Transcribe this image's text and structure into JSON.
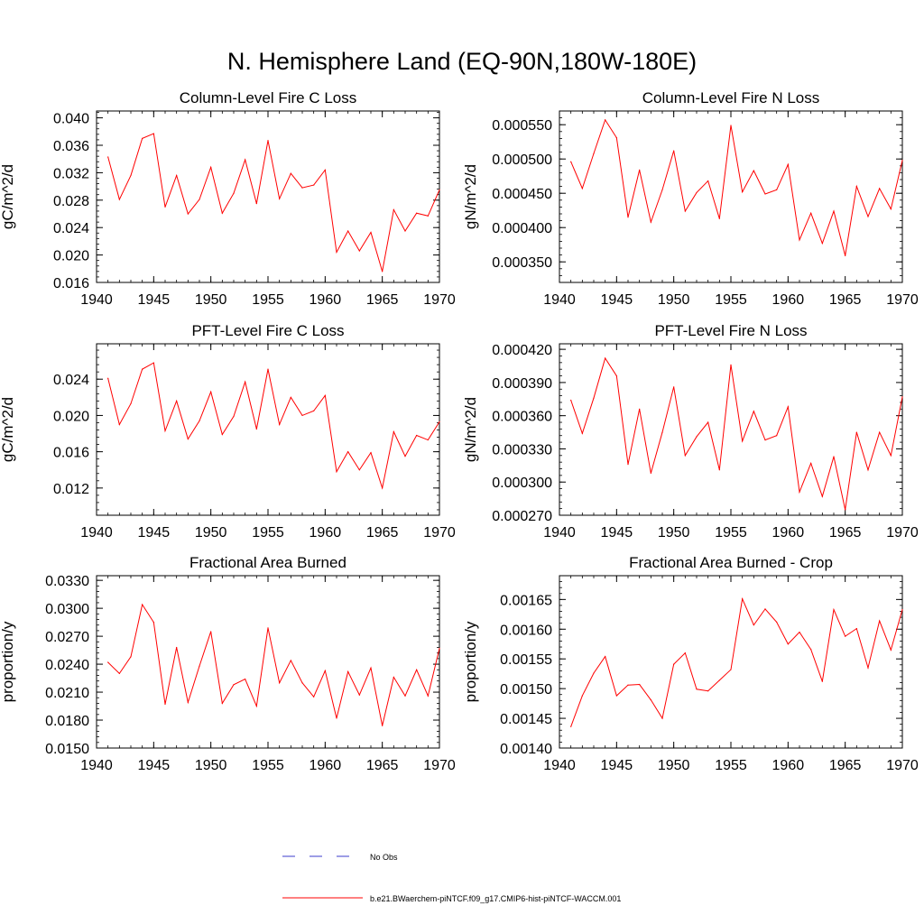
{
  "figure_title": "N. Hemisphere Land (EQ-90N,180W-180E)",
  "legend": {
    "obs_label": "No Obs",
    "obs_color": "#3b3bcc",
    "model_label": "b.e21.BWaerchem-piNTCF.f09_g17.CMIP6-hist-piNTCF-WACCM.001",
    "model_color": "#ff0000"
  },
  "chart_data": [
    {
      "type": "line",
      "title": "Column-Level Fire C Loss",
      "xlabel": "",
      "ylabel": "gC/m^2/d",
      "xlim": [
        1940,
        1970
      ],
      "ylim": [
        0.016,
        0.041
      ],
      "grid": false,
      "x_ticks": [
        1940,
        1945,
        1950,
        1955,
        1960,
        1965,
        1970
      ],
      "x_tick_labels": [
        "1940",
        "1945",
        "1950",
        "1955",
        "1960",
        "1965",
        "1970"
      ],
      "y_ticks": [
        0.016,
        0.02,
        0.024,
        0.028,
        0.032,
        0.036,
        0.04
      ],
      "y_tick_labels": [
        "0.016",
        "0.020",
        "0.024",
        "0.028",
        "0.032",
        "0.036",
        "0.040"
      ],
      "y_minor_step": 0.0008,
      "series": [
        {
          "color": "#ff0000",
          "x": [
            1941,
            1942,
            1943,
            1944,
            1945,
            1946,
            1947,
            1948,
            1949,
            1950,
            1951,
            1952,
            1953,
            1954,
            1955,
            1956,
            1957,
            1958,
            1959,
            1960,
            1961,
            1962,
            1963,
            1964,
            1965,
            1966,
            1967,
            1968,
            1969,
            1970
          ],
          "values": [
            0.0343,
            0.0281,
            0.0316,
            0.037,
            0.0377,
            0.027,
            0.0316,
            0.026,
            0.0281,
            0.0328,
            0.0261,
            0.029,
            0.0339,
            0.0275,
            0.0367,
            0.0282,
            0.0319,
            0.0298,
            0.0302,
            0.0324,
            0.0204,
            0.0235,
            0.0206,
            0.0233,
            0.0176,
            0.0266,
            0.0235,
            0.0261,
            0.0257,
            0.0295
          ]
        }
      ]
    },
    {
      "type": "line",
      "title": "Column-Level Fire N Loss",
      "xlabel": "",
      "ylabel": "gN/m^2/d",
      "xlim": [
        1940,
        1970
      ],
      "ylim": [
        0.00032,
        0.00057
      ],
      "grid": false,
      "x_ticks": [
        1940,
        1945,
        1950,
        1955,
        1960,
        1965,
        1970
      ],
      "x_tick_labels": [
        "1940",
        "1945",
        "1950",
        "1955",
        "1960",
        "1965",
        "1970"
      ],
      "y_ticks": [
        0.00035,
        0.0004,
        0.00045,
        0.0005,
        0.00055
      ],
      "y_tick_labels": [
        "0.000350",
        "0.000400",
        "0.000450",
        "0.000500",
        "0.000550"
      ],
      "y_minor_step": 1e-05,
      "series": [
        {
          "color": "#ff0000",
          "x": [
            1941,
            1942,
            1943,
            1944,
            1945,
            1946,
            1947,
            1948,
            1949,
            1950,
            1951,
            1952,
            1953,
            1954,
            1955,
            1956,
            1957,
            1958,
            1959,
            1960,
            1961,
            1962,
            1963,
            1964,
            1965,
            1966,
            1967,
            1968,
            1969,
            1970
          ],
          "values": [
            0.000496,
            0.000457,
            0.000508,
            0.000557,
            0.000531,
            0.000415,
            0.000484,
            0.000408,
            0.000455,
            0.000512,
            0.000424,
            0.000451,
            0.000468,
            0.000413,
            0.000549,
            0.000452,
            0.000483,
            0.000449,
            0.000455,
            0.000492,
            0.000382,
            0.000421,
            0.000377,
            0.000424,
            0.000359,
            0.00046,
            0.000416,
            0.000457,
            0.000427,
            0.000498
          ]
        }
      ]
    },
    {
      "type": "line",
      "title": "PFT-Level Fire C Loss",
      "xlabel": "",
      "ylabel": "gC/m^2/d",
      "xlim": [
        1940,
        1970
      ],
      "ylim": [
        0.009,
        0.0279
      ],
      "grid": false,
      "x_ticks": [
        1940,
        1945,
        1950,
        1955,
        1960,
        1965,
        1970
      ],
      "x_tick_labels": [
        "1940",
        "1945",
        "1950",
        "1955",
        "1960",
        "1965",
        "1970"
      ],
      "y_ticks": [
        0.012,
        0.016,
        0.02,
        0.024
      ],
      "y_tick_labels": [
        "0.012",
        "0.016",
        "0.020",
        "0.024"
      ],
      "y_minor_step": 0.0008,
      "series": [
        {
          "color": "#ff0000",
          "x": [
            1941,
            1942,
            1943,
            1944,
            1945,
            1946,
            1947,
            1948,
            1949,
            1950,
            1951,
            1952,
            1953,
            1954,
            1955,
            1956,
            1957,
            1958,
            1959,
            1960,
            1961,
            1962,
            1963,
            1964,
            1965,
            1966,
            1967,
            1968,
            1969,
            1970
          ],
          "values": [
            0.0241,
            0.019,
            0.0213,
            0.0251,
            0.0258,
            0.0183,
            0.0216,
            0.0174,
            0.0194,
            0.0226,
            0.0179,
            0.0199,
            0.0237,
            0.0185,
            0.0251,
            0.019,
            0.022,
            0.02,
            0.0205,
            0.0222,
            0.0138,
            0.016,
            0.014,
            0.0159,
            0.012,
            0.0182,
            0.0155,
            0.0178,
            0.0173,
            0.0193
          ]
        }
      ]
    },
    {
      "type": "line",
      "title": "PFT-Level Fire N Loss",
      "xlabel": "",
      "ylabel": "gN/m^2/d",
      "xlim": [
        1940,
        1970
      ],
      "ylim": [
        0.00027,
        0.000425
      ],
      "grid": false,
      "x_ticks": [
        1940,
        1945,
        1950,
        1955,
        1960,
        1965,
        1970
      ],
      "x_tick_labels": [
        "1940",
        "1945",
        "1950",
        "1955",
        "1960",
        "1965",
        "1970"
      ],
      "y_ticks": [
        0.00027,
        0.0003,
        0.00033,
        0.00036,
        0.00039,
        0.00042
      ],
      "y_tick_labels": [
        "0.000270",
        "0.000300",
        "0.000330",
        "0.000360",
        "0.000390",
        "0.000420"
      ],
      "y_minor_step": 6e-06,
      "series": [
        {
          "color": "#ff0000",
          "x": [
            1941,
            1942,
            1943,
            1944,
            1945,
            1946,
            1947,
            1948,
            1949,
            1950,
            1951,
            1952,
            1953,
            1954,
            1955,
            1956,
            1957,
            1958,
            1959,
            1960,
            1961,
            1962,
            1963,
            1964,
            1965,
            1966,
            1967,
            1968,
            1969,
            1970
          ],
          "values": [
            0.000374,
            0.000344,
            0.000376,
            0.000412,
            0.000396,
            0.000316,
            0.000366,
            0.000308,
            0.000345,
            0.000386,
            0.000324,
            0.000341,
            0.000354,
            0.000311,
            0.000406,
            0.000337,
            0.000364,
            0.000338,
            0.000342,
            0.000368,
            0.000291,
            0.000317,
            0.000287,
            0.000323,
            0.000275,
            0.000345,
            0.000311,
            0.000345,
            0.000324,
            0.000377
          ]
        }
      ]
    },
    {
      "type": "line",
      "title": "Fractional Area Burned",
      "xlabel": "",
      "ylabel": "proportion/y",
      "xlim": [
        1940,
        1970
      ],
      "ylim": [
        0.015,
        0.0335
      ],
      "grid": false,
      "x_ticks": [
        1940,
        1945,
        1950,
        1955,
        1960,
        1965,
        1970
      ],
      "x_tick_labels": [
        "1940",
        "1945",
        "1950",
        "1955",
        "1960",
        "1965",
        "1970"
      ],
      "y_ticks": [
        0.015,
        0.018,
        0.021,
        0.024,
        0.027,
        0.03,
        0.033
      ],
      "y_tick_labels": [
        "0.0150",
        "0.0180",
        "0.0210",
        "0.0240",
        "0.0270",
        "0.0300",
        "0.0330"
      ],
      "y_minor_step": 0.0006,
      "series": [
        {
          "color": "#ff0000",
          "x": [
            1941,
            1942,
            1943,
            1944,
            1945,
            1946,
            1947,
            1948,
            1949,
            1950,
            1951,
            1952,
            1953,
            1954,
            1955,
            1956,
            1957,
            1958,
            1959,
            1960,
            1961,
            1962,
            1963,
            1964,
            1965,
            1966,
            1967,
            1968,
            1969,
            1970
          ],
          "values": [
            0.0242,
            0.023,
            0.0248,
            0.0304,
            0.0285,
            0.0197,
            0.0258,
            0.0199,
            0.0238,
            0.0275,
            0.0198,
            0.0218,
            0.0224,
            0.0195,
            0.0279,
            0.022,
            0.0244,
            0.022,
            0.0205,
            0.0233,
            0.0182,
            0.0232,
            0.0207,
            0.0236,
            0.0174,
            0.0226,
            0.0206,
            0.0234,
            0.0206,
            0.0257
          ]
        }
      ]
    },
    {
      "type": "line",
      "title": "Fractional Area Burned - Crop",
      "xlabel": "",
      "ylabel": "proportion/y",
      "xlim": [
        1940,
        1970
      ],
      "ylim": [
        0.0014,
        0.00169
      ],
      "grid": false,
      "x_ticks": [
        1940,
        1945,
        1950,
        1955,
        1960,
        1965,
        1970
      ],
      "x_tick_labels": [
        "1940",
        "1945",
        "1950",
        "1955",
        "1960",
        "1965",
        "1970"
      ],
      "y_ticks": [
        0.0014,
        0.00145,
        0.0015,
        0.00155,
        0.0016,
        0.00165
      ],
      "y_tick_labels": [
        "0.00140",
        "0.00145",
        "0.00150",
        "0.00155",
        "0.00160",
        "0.00165"
      ],
      "y_minor_step": 1e-05,
      "series": [
        {
          "color": "#ff0000",
          "x": [
            1941,
            1942,
            1943,
            1944,
            1945,
            1946,
            1947,
            1948,
            1949,
            1950,
            1951,
            1952,
            1953,
            1954,
            1955,
            1956,
            1957,
            1958,
            1959,
            1960,
            1961,
            1962,
            1963,
            1964,
            1965,
            1966,
            1967,
            1968,
            1969,
            1970
          ],
          "values": [
            0.001436,
            0.001488,
            0.001526,
            0.001554,
            0.001488,
            0.001506,
            0.001507,
            0.001481,
            0.00145,
            0.001541,
            0.00156,
            0.001499,
            0.001496,
            0.001514,
            0.001532,
            0.001651,
            0.001607,
            0.001634,
            0.001612,
            0.001575,
            0.001595,
            0.001566,
            0.001512,
            0.001633,
            0.001588,
            0.001601,
            0.001535,
            0.001614,
            0.001565,
            0.001633
          ]
        }
      ]
    }
  ]
}
